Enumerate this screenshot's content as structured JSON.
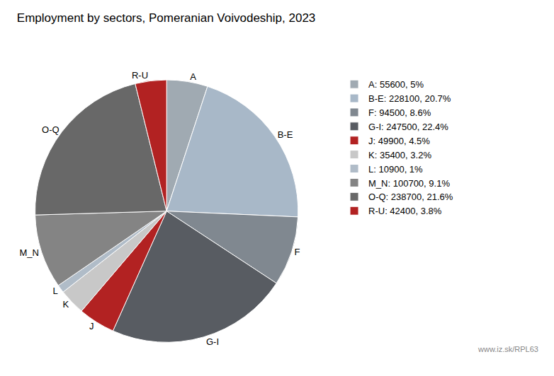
{
  "chart_data": {
    "type": "pie",
    "title": "Employment by sectors, Pomeranian Voivodeship, 2023",
    "categories": [
      "A",
      "B-E",
      "F",
      "G-I",
      "J",
      "K",
      "L",
      "M_N",
      "O-Q",
      "R-U"
    ],
    "values": [
      55600,
      228100,
      94500,
      247500,
      49900,
      35400,
      10900,
      100700,
      238700,
      42400
    ],
    "legend_labels": [
      "A: 55600, 5%",
      "B-E: 228100, 20.7%",
      "F: 94500, 8.6%",
      "G-I: 247500, 22.4%",
      "J: 49900, 4.5%",
      "K: 35400, 3.2%",
      "L: 10900, 1%",
      "M_N: 100700, 9.1%",
      "O-Q: 238700, 21.6%",
      "R-U: 42400, 3.8%"
    ],
    "colors": [
      "#a0aab2",
      "#a8b8c8",
      "#808890",
      "#585c62",
      "#b22222",
      "#c8c8c8",
      "#b0bcc8",
      "#848484",
      "#686868",
      "#b22222"
    ],
    "annotations": [
      "www.iz.sk/RPL63"
    ],
    "legend": "right"
  }
}
